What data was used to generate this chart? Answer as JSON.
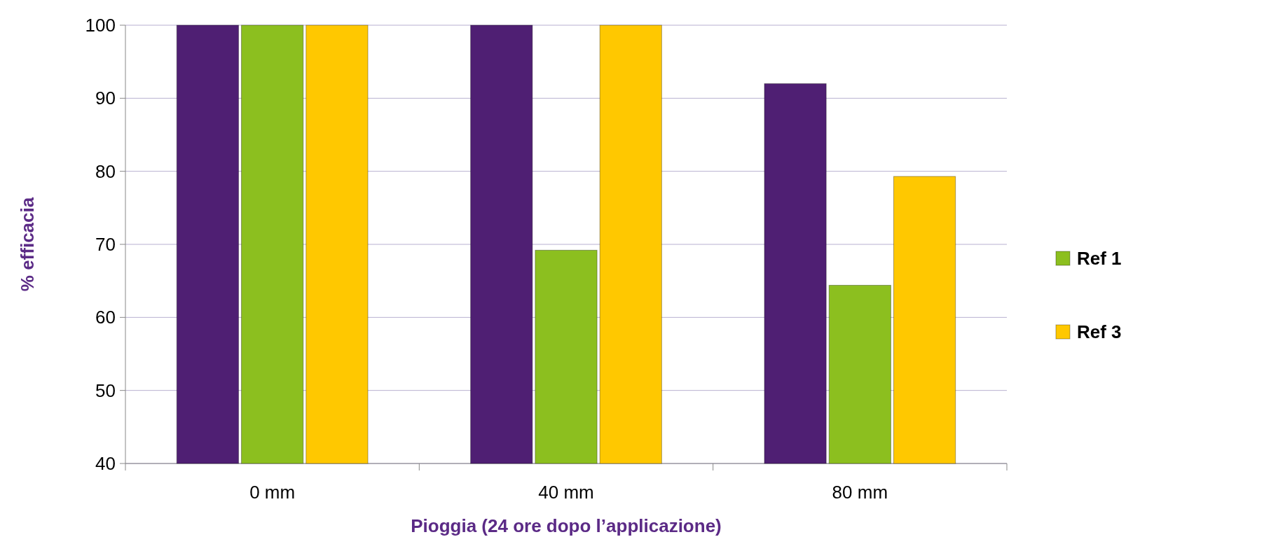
{
  "chart_data": {
    "type": "bar",
    "xlabel": "Pioggia (24 ore dopo l’applicazione)",
    "ylabel": "% efficacia",
    "categories": [
      "0 mm",
      "40 mm",
      "80 mm"
    ],
    "series": [
      {
        "color": "#4f1f73",
        "values": [
          100,
          100,
          92
        ]
      },
      {
        "name": "Ref 1",
        "color": "#8cbf1f",
        "values": [
          100,
          69.2,
          64.4
        ]
      },
      {
        "name": "Ref 3",
        "color": "#ffc800",
        "values": [
          100,
          100,
          79.3
        ]
      }
    ],
    "ylim": [
      40,
      100
    ],
    "yticks": [
      40,
      50,
      60,
      70,
      80,
      90,
      100
    ],
    "grid": "y",
    "legend": "right"
  }
}
